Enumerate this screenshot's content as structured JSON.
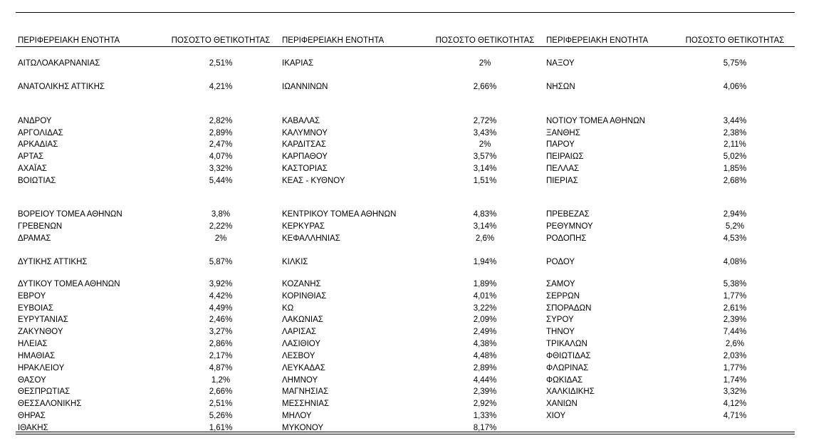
{
  "table": {
    "header": [
      "ΠΕΡΙΦΕΡΕΙΑΚΗ ΕΝΟΤΗΤΑ",
      "ΠΟΣΟΣΤΟ ΘΕΤΙΚΟΤΗΤΑΣ",
      "ΠΕΡΙΦΕΡΕΙΑΚΗ ΕΝΟΤΗΤΑ",
      "ΠΟΣΟΣΤΟ ΘΕΤΙΚΟΤΗΤΑΣ",
      "ΠΕΡΙΦΕΡΕΙΑΚΗ ΕΝΟΤΗΤΑ",
      "ΠΟΣΟΣΤΟ ΘΕΤΙΚΟΤΗΤΑΣ"
    ],
    "rows": [
      [
        "ΑΙΤΩΛΟΑΚΑΡΝΑΝΙΑΣ",
        "2,51%",
        "ΙΚΑΡΙΑΣ",
        "2%",
        "ΝΑΞΟΥ",
        "5,75%"
      ],
      [
        "ΑΝΑΤΟΛΙΚΗΣ ΑΤΤΙΚΗΣ",
        "4,21%",
        "ΙΩΑΝΝΙΝΩΝ",
        "2,66%",
        "ΝΗΣΩΝ",
        "4,06%"
      ],
      [
        "ΑΝΔΡΟΥ",
        "2,82%",
        "ΚΑΒΑΛΑΣ",
        "2,72%",
        "ΝΟΤΙΟΥ ΤΟΜΕΑ ΑΘΗΝΩΝ",
        "3,44%"
      ],
      [
        "ΑΡΓΟΛΙΔΑΣ",
        "2,89%",
        "ΚΑΛΥΜΝΟΥ",
        "3,43%",
        "ΞΑΝΘΗΣ",
        "2,38%"
      ],
      [
        "ΑΡΚΑΔΙΑΣ",
        "2,47%",
        "ΚΑΡΔΙΤΣΑΣ",
        "2%",
        "ΠΑΡΟΥ",
        "2,11%"
      ],
      [
        "ΑΡΤΑΣ",
        "4,07%",
        "ΚΑΡΠΑΘΟΥ",
        "3,57%",
        "ΠΕΙΡΑΙΩΣ",
        "5,02%"
      ],
      [
        "ΑΧΑΪΑΣ",
        "3,32%",
        "ΚΑΣΤΟΡΙΑΣ",
        "3,14%",
        "ΠΕΛΛΑΣ",
        "1,85%"
      ],
      [
        "ΒΟΙΩΤΙΑΣ",
        "5,44%",
        "ΚΕΑΣ - ΚΥΘΝΟΥ",
        "1,51%",
        "ΠΙΕΡΙΑΣ",
        "2,68%"
      ],
      [
        "ΒΟΡΕΙΟΥ ΤΟΜΕΑ ΑΘΗΝΩΝ",
        "3,8%",
        "ΚΕΝΤΡΙΚΟΥ ΤΟΜΕΑ ΑΘΗΝΩΝ",
        "4,83%",
        "ΠΡΕΒΕΖΑΣ",
        "2,94%"
      ],
      [
        "ΓΡΕΒΕΝΩΝ",
        "2,22%",
        "ΚΕΡΚΥΡΑΣ",
        "3,14%",
        "ΡΕΘΥΜΝΟΥ",
        "5,2%"
      ],
      [
        "ΔΡΑΜΑΣ",
        "2%",
        "ΚΕΦΑΛΛΗΝΙΑΣ",
        "2,6%",
        "ΡΟΔΟΠΗΣ",
        "4,53%"
      ],
      [
        "ΔΥΤΙΚΗΣ ΑΤΤΙΚΗΣ",
        "5,87%",
        "ΚΙΛΚΙΣ",
        "1,94%",
        "ΡΟΔΟΥ",
        "4,08%"
      ],
      [
        "ΔΥΤΙΚΟΥ ΤΟΜΕΑ ΑΘΗΝΩΝ",
        "3,92%",
        "ΚΟΖΑΝΗΣ",
        "1,89%",
        "ΣΑΜΟΥ",
        "5,38%"
      ],
      [
        "ΕΒΡΟΥ",
        "4,42%",
        "ΚΟΡΙΝΘΙΑΣ",
        "4,01%",
        "ΣΕΡΡΩΝ",
        "1,77%"
      ],
      [
        "ΕΥΒΟΙΑΣ",
        "4,49%",
        "ΚΩ",
        "3,22%",
        "ΣΠΟΡΑΔΩΝ",
        "2,61%"
      ],
      [
        "ΕΥΡΥΤΑΝΙΑΣ",
        "2,46%",
        "ΛΑΚΩΝΙΑΣ",
        "2,09%",
        "ΣΥΡΟΥ",
        "2,39%"
      ],
      [
        "ΖΑΚΥΝΘΟΥ",
        "3,27%",
        "ΛΑΡΙΣΑΣ",
        "2,49%",
        "ΤΗΝΟΥ",
        "7,44%"
      ],
      [
        "ΗΛΕΙΑΣ",
        "2,86%",
        "ΛΑΣΙΘΙΟΥ",
        "4,38%",
        "ΤΡΙΚΑΛΩΝ",
        "2,6%"
      ],
      [
        "ΗΜΑΘΙΑΣ",
        "2,17%",
        "ΛΕΣΒΟΥ",
        "4,48%",
        "ΦΘΙΩΤΙΔΑΣ",
        "2,03%"
      ],
      [
        "ΗΡΑΚΛΕΙΟΥ",
        "4,87%",
        "ΛΕΥΚΑΔΑΣ",
        "2,89%",
        "ΦΛΩΡΙΝΑΣ",
        "1,77%"
      ],
      [
        "ΘΑΣΟΥ",
        "1,2%",
        "ΛΗΜΝΟΥ",
        "4,44%",
        "ΦΩΚΙΔΑΣ",
        "1,74%"
      ],
      [
        "ΘΕΣΠΡΩΤΙΑΣ",
        "2,66%",
        "ΜΑΓΝΗΣΙΑΣ",
        "2,39%",
        "ΧΑΛΚΙΔΙΚΗΣ",
        "3,32%"
      ],
      [
        "ΘΕΣΣΑΛΟΝΙΚΗΣ",
        "2,51%",
        "ΜΕΣΣΗΝΙΑΣ",
        "2,92%",
        "ΧΑΝΙΩΝ",
        "4,12%"
      ],
      [
        "ΘΗΡΑΣ",
        "5,26%",
        "ΜΗΛΟΥ",
        "1,33%",
        "ΧΙΟΥ",
        "4,71%"
      ],
      [
        "ΙΘΑΚΗΣ",
        "1,61%",
        "ΜΥΚΟΝΟΥ",
        "8,17%"
      ]
    ]
  }
}
